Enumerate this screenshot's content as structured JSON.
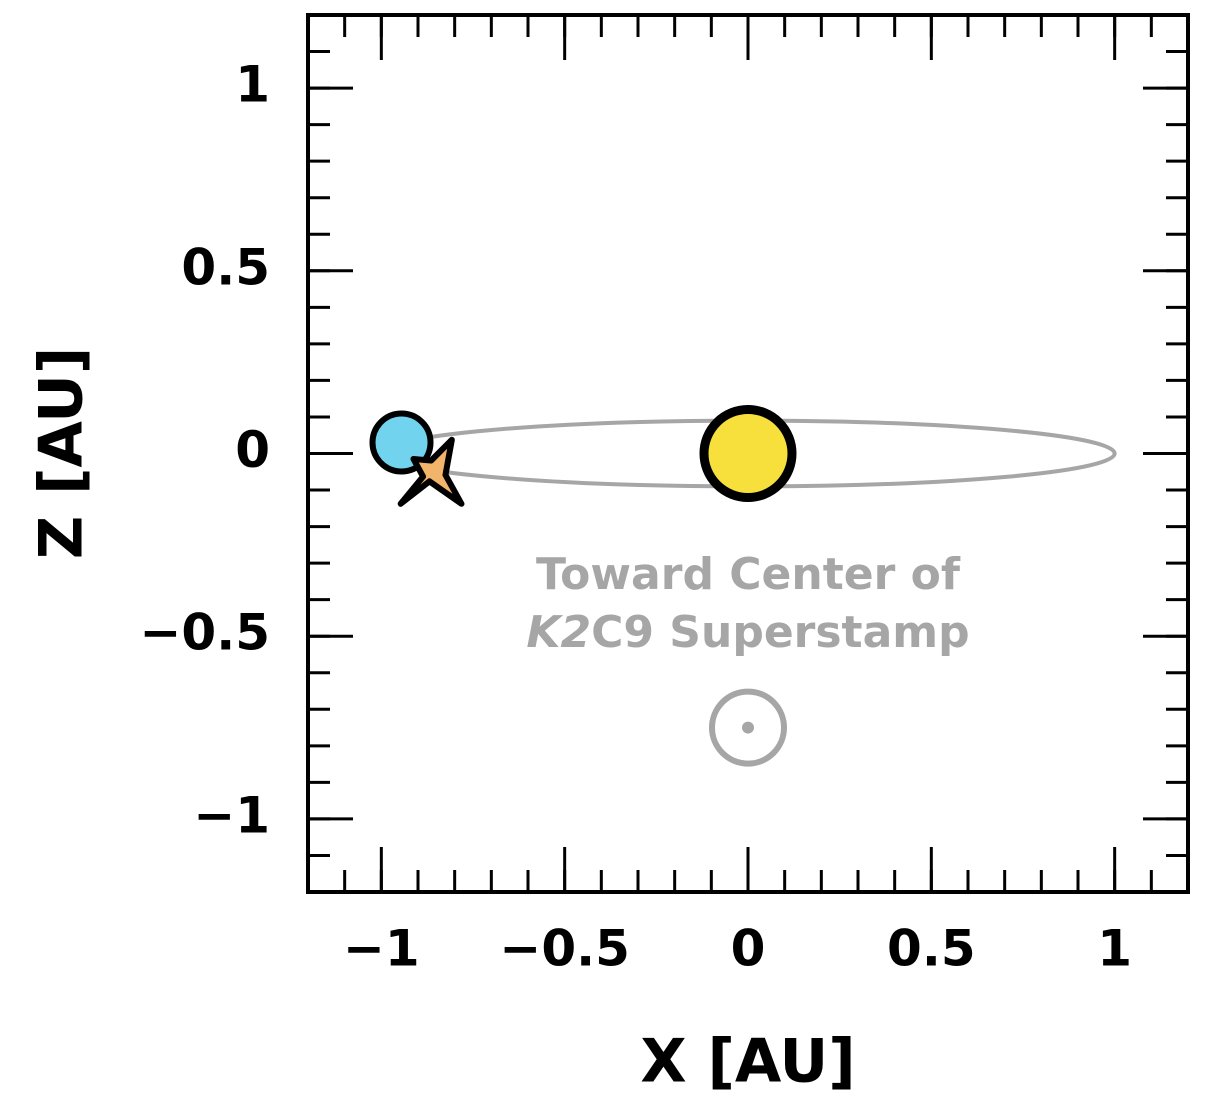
{
  "chart_data": {
    "type": "scatter",
    "x_label": "X [AU]",
    "y_label": "Z [AU]",
    "xlim": [
      -1.2,
      1.2
    ],
    "ylim": [
      -1.2,
      1.2
    ],
    "xticks": [
      {
        "value": -1,
        "label": "−1"
      },
      {
        "value": -0.5,
        "label": "−0.5"
      },
      0,
      0.5,
      1
    ],
    "yticks": [
      {
        "value": -1,
        "label": "−1"
      },
      {
        "value": -0.5,
        "label": "−0.5"
      },
      0,
      0.5,
      1
    ],
    "minor_tick_step": 0.1,
    "orbit": {
      "semi_major": 1,
      "semi_minor": 0.09,
      "color": "#a6a6a6"
    },
    "points": [
      {
        "x": -0.945,
        "y": 0.03,
        "color": "#72d3ef",
        "marker": "circle"
      },
      {
        "x": -0.86,
        "y": -0.05,
        "color": "#f2b36b",
        "marker": "star"
      },
      {
        "x": 0,
        "y": 0,
        "color": "#f7e03c",
        "marker": "sun"
      }
    ],
    "annotation": {
      "line1": "Toward Center of",
      "line2_italic": "K2",
      "line2_rest": "C9 Superstamp",
      "x": 0,
      "y": -0.75,
      "color": "#a6a6a6"
    }
  }
}
